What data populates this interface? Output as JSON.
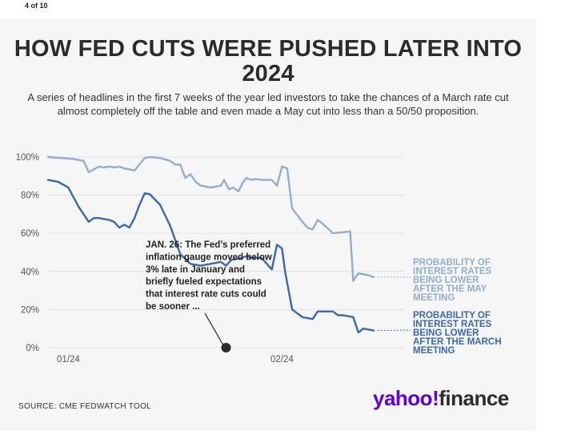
{
  "counter": "4 of 10",
  "title": "HOW FED CUTS WERE PUSHED LATER INTO 2024",
  "subtitle": "A series of headlines in the first 7 weeks of the year led investors to take the chances of a March rate cut almost completely off the table and even made a May cut into less than a 50/50 proposition.",
  "source": "SOURCE: CME FEDWATCH TOOL",
  "logo": {
    "brand": "yahoo!",
    "product": "finance"
  },
  "colors": {
    "may": "#8faed0",
    "march": "#3868b0",
    "marker": "#2b2b2b"
  },
  "chart_data": {
    "type": "line",
    "title": "",
    "xlabel": "",
    "ylabel": "",
    "ylim": [
      0,
      100
    ],
    "yticks": [
      0,
      20,
      40,
      60,
      80,
      100
    ],
    "ytick_labels": [
      "0%",
      "20%",
      "40%",
      "60%",
      "80%",
      "100%"
    ],
    "xlim": [
      0,
      35
    ],
    "xticks": [
      {
        "x": 2,
        "label": "01/24"
      },
      {
        "x": 23,
        "label": "02/24"
      }
    ],
    "series": [
      {
        "name": "PROBABILITY OF INTEREST RATES BEING LOWER AFTER THE MAY MEETING",
        "label_lines": [
          "PROBABILITY OF",
          "INTEREST RATES",
          "BEING LOWER",
          "AFTER THE MAY",
          "MEETING"
        ],
        "color": "#8faed0",
        "x": [
          0,
          2.5,
          3.5,
          4,
          5,
          5.5,
          6,
          6.5,
          7,
          7.5,
          8.5,
          9.5,
          10,
          11,
          12,
          12.5,
          13,
          13.5,
          14,
          14.5,
          15,
          15.5,
          16,
          17,
          17.3,
          17.8,
          18.2,
          18.7,
          19.2,
          19.5,
          20,
          20.5,
          21,
          22,
          22.5,
          23,
          23.5,
          24,
          25,
          25.5,
          26,
          26.5,
          27,
          28,
          29.7,
          30,
          30.5,
          31.5,
          32
        ],
        "y": [
          100,
          99,
          98,
          92,
          95,
          94.5,
          95,
          94.5,
          95,
          94,
          93,
          99.5,
          100,
          99.5,
          98,
          96,
          96,
          89,
          91,
          87,
          85,
          84.5,
          84,
          85,
          88,
          83,
          84,
          82,
          87,
          89,
          88,
          88.5,
          88,
          88,
          85,
          95,
          94,
          73,
          66,
          63,
          62,
          67,
          65,
          60,
          61,
          35,
          39,
          38,
          37
        ]
      },
      {
        "name": "PROBABILITY OF INTEREST RATES BEING LOWER AFTER THE MARCH MEETING",
        "label_lines": [
          "PROBABILITY OF",
          "INTEREST RATES",
          "BEING LOWER",
          "AFTER THE MARCH",
          "MEETING"
        ],
        "color": "#3868b0",
        "x": [
          0,
          1,
          2,
          3,
          4,
          4.5,
          5,
          5.5,
          6,
          6.5,
          7,
          7.5,
          8,
          8.5,
          9,
          9.5,
          10,
          11,
          12,
          13,
          14,
          15,
          16,
          17,
          17.5,
          18,
          19,
          19.5,
          20,
          21,
          22,
          22.5,
          23,
          23.3,
          24,
          25,
          26,
          26.5,
          27,
          28,
          28.5,
          29,
          30,
          30.5,
          31,
          32
        ],
        "y": [
          88,
          87,
          84,
          74,
          66,
          68,
          68,
          67.5,
          67,
          66,
          63,
          64.5,
          63,
          68,
          75,
          81,
          80.5,
          75,
          64,
          49,
          44,
          43,
          44,
          45,
          43,
          46,
          47,
          48,
          47,
          47,
          41,
          54,
          52,
          40,
          20,
          16,
          15,
          19,
          19,
          19,
          17,
          17,
          16,
          8,
          10,
          9
        ]
      }
    ],
    "annotation": {
      "x": 17.5,
      "y": 0,
      "text_lines": [
        "JAN. 26: The Fed’s preferred",
        "inflation gauge moved below",
        "3% late in January and",
        "briefly fueled expectations",
        "that interest rate cuts could",
        "be sooner ..."
      ]
    }
  }
}
